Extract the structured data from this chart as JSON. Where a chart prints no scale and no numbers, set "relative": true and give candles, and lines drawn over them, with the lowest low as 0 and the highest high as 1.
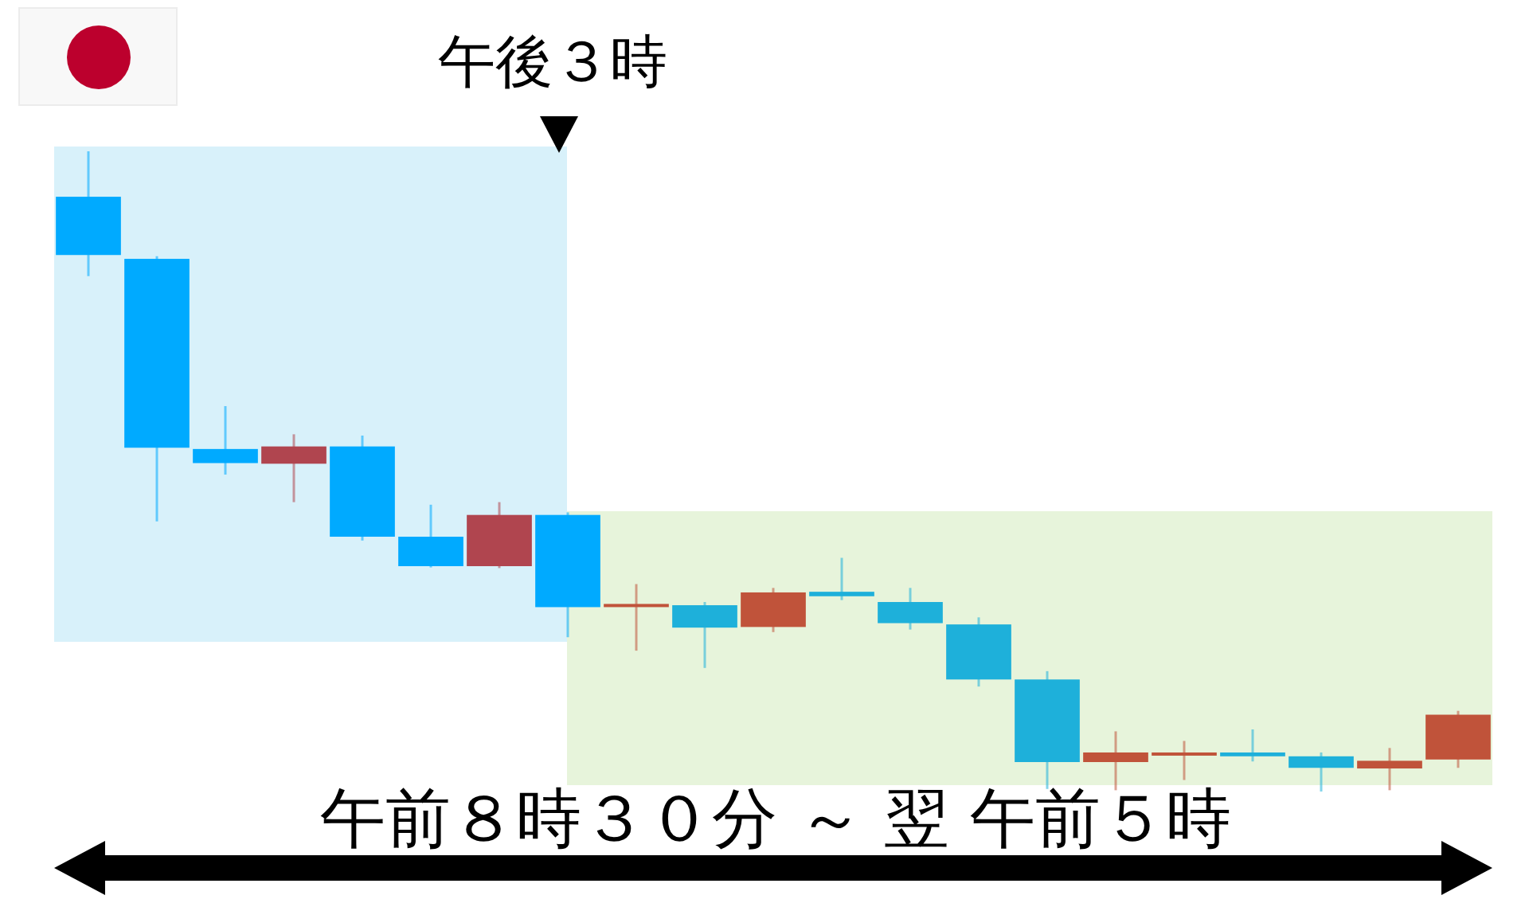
{
  "chart_data": {
    "type": "candlestick",
    "relative": true,
    "categories": [
      null,
      null,
      null,
      null,
      null,
      null,
      null,
      null,
      null,
      null,
      null,
      null,
      null,
      null,
      null,
      null,
      null,
      null,
      null,
      null,
      null
    ],
    "ohlc": [
      [
        0.929,
        1,
        0.805,
        0.838
      ],
      [
        0.832,
        0.836,
        0.422,
        0.537
      ],
      [
        0.535,
        0.602,
        0.495,
        0.513
      ],
      [
        0.512,
        0.558,
        0.452,
        0.539
      ],
      [
        0.539,
        0.556,
        0.392,
        0.398
      ],
      [
        0.398,
        0.448,
        0.35,
        0.352
      ],
      [
        0.352,
        0.452,
        0.349,
        0.432
      ],
      [
        0.432,
        0.436,
        0.241,
        0.288
      ],
      [
        0.292,
        0.324,
        0.22,
        0.293
      ],
      [
        0.291,
        0.296,
        0.193,
        0.256
      ],
      [
        0.257,
        0.318,
        0.249,
        0.311
      ],
      [
        0.312,
        0.365,
        0.299,
        0.305
      ],
      [
        0.296,
        0.318,
        0.253,
        0.263
      ],
      [
        0.261,
        0.272,
        0.164,
        0.175
      ],
      [
        0.175,
        0.188,
        0.004,
        0.046
      ],
      [
        0.046,
        0.094,
        0.002,
        0.061
      ],
      [
        0.06,
        0.079,
        0.018,
        0.061
      ],
      [
        0.061,
        0.097,
        0.047,
        0.055
      ],
      [
        0.055,
        0.061,
        0,
        0.037
      ],
      [
        0.036,
        0.068,
        0.002,
        0.048
      ],
      [
        0.05,
        0.126,
        0.037,
        0.12
      ]
    ],
    "colors": [
      "#00aaff",
      "#00aaff",
      "#00aaff",
      "#b0454f",
      "#00aaff",
      "#00aaff",
      "#b0454f",
      "#00aaff",
      "#c0533a",
      "#1eb0da",
      "#c0533a",
      "#1eb0da",
      "#1eb0da",
      "#1eb0da",
      "#1eb0da",
      "#c0533a",
      "#c0533a",
      "#1eb0da",
      "#1eb0da",
      "#c0533a",
      "#c0533a"
    ],
    "annotations": [
      "午後３時",
      "午前８時３０分 ～ 翌 午前５時"
    ]
  }
}
